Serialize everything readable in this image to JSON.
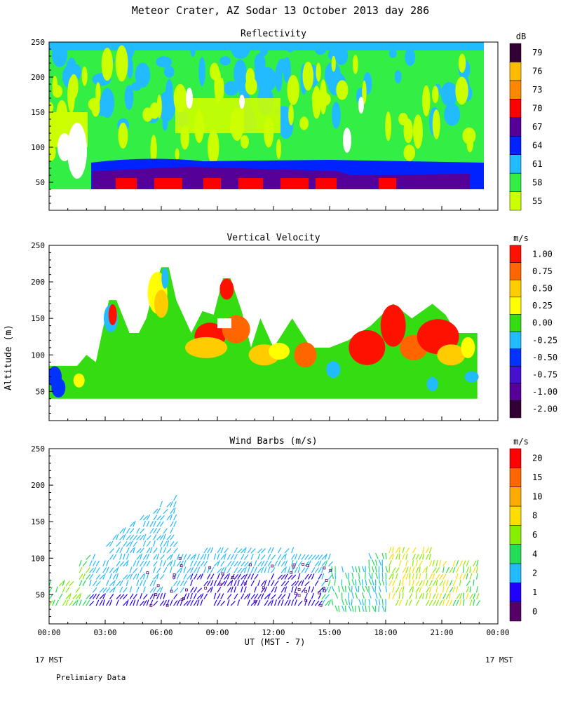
{
  "page": {
    "title": "Meteor Crater, AZ  Sodar  13 October 2013  day 286",
    "footer_left": "17 MST",
    "footer_right": "17 MST",
    "preliminary": "Prelimiary Data"
  },
  "chart_data": [
    {
      "type": "heatmap",
      "title": "Reflectivity",
      "ylabel": "",
      "ylim": [
        10,
        250
      ],
      "yticks": [
        "50",
        "100",
        "150",
        "200",
        "250"
      ],
      "colorbar": {
        "unit": "dB",
        "labels": [
          "55",
          "58",
          "61",
          "64",
          "67",
          "70",
          "73",
          "76",
          "79"
        ],
        "colors": [
          "#ccff00",
          "#33ee44",
          "#22bbff",
          "#0022ff",
          "#550099",
          "#ff0000",
          "#ff8800",
          "#ffbb00",
          "#330033"
        ]
      },
      "data_altitude_range": [
        40,
        250
      ],
      "bands": [
        {
          "name": "surface",
          "alt": [
            40,
            60
          ],
          "color_index": 5
        },
        {
          "name": "low",
          "alt": [
            50,
            75
          ],
          "color_index": 4
        },
        {
          "name": "mid",
          "alt": [
            60,
            90
          ],
          "color_index": 3
        },
        {
          "name": "upper",
          "alt": [
            90,
            250
          ],
          "color_index": 1
        }
      ]
    },
    {
      "type": "heatmap",
      "title": "Vertical Velocity",
      "ylabel": "Altitude (m)",
      "ylim": [
        10,
        250
      ],
      "yticks": [
        "50",
        "100",
        "150",
        "200",
        "250"
      ],
      "colorbar": {
        "unit": "m/s",
        "labels": [
          "-2.00",
          "-1.00",
          "-0.75",
          "-0.50",
          "-0.25",
          "0.00",
          "0.25",
          "0.50",
          "0.75",
          "1.00"
        ],
        "colors": [
          "#330033",
          "#550099",
          "#4411cc",
          "#0033ff",
          "#22bbff",
          "#33dd11",
          "#ffff00",
          "#ffcc00",
          "#ff6600",
          "#ff1100"
        ]
      },
      "data_altitude_range": [
        40,
        220
      ]
    },
    {
      "type": "scatter",
      "title": "Wind Barbs (m/s)",
      "ylabel": "",
      "ylim": [
        10,
        250
      ],
      "yticks": [
        "50",
        "100",
        "150",
        "200",
        "250"
      ],
      "colorbar": {
        "unit": "m/s",
        "labels": [
          "0",
          "1",
          "2",
          "4",
          "6",
          "8",
          "10",
          "15",
          "20"
        ],
        "colors": [
          "#550066",
          "#2200ff",
          "#22bbff",
          "#22dd55",
          "#88ee00",
          "#ffdd00",
          "#ffaa00",
          "#ff6600",
          "#ff0000"
        ]
      },
      "data_altitude_range": [
        30,
        190
      ]
    }
  ],
  "x_axis": {
    "labels": [
      "00:00",
      "03:00",
      "06:00",
      "09:00",
      "12:00",
      "15:00",
      "18:00",
      "21:00",
      "00:00"
    ],
    "xlabel": "UT  (MST - 7)",
    "range_hours": [
      0,
      24
    ]
  }
}
